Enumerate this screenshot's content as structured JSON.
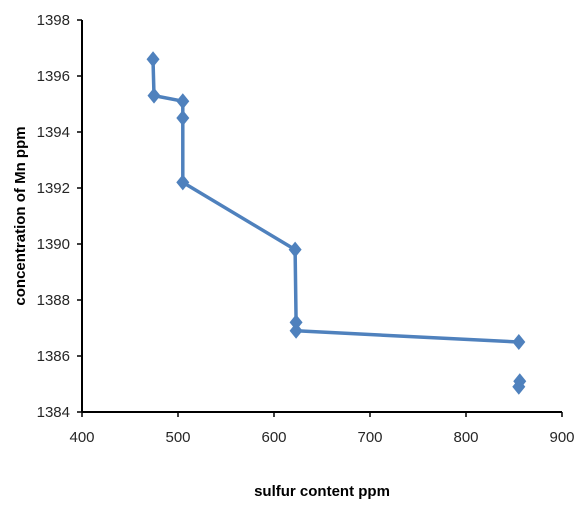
{
  "chart_data": {
    "type": "line",
    "title": "",
    "xlabel": "sulfur content ppm",
    "ylabel": "concentration of Mn ppm",
    "xlim": [
      400,
      900
    ],
    "ylim": [
      1384,
      1398
    ],
    "x_ticks": [
      400,
      500,
      600,
      700,
      800,
      900
    ],
    "y_ticks": [
      1384,
      1386,
      1388,
      1390,
      1392,
      1394,
      1396,
      1398
    ],
    "grid": false,
    "legend": "none",
    "series": [
      {
        "color": "#4f81bd",
        "marker": "diamond",
        "points": [
          {
            "x": 474,
            "y": 1396.6
          },
          {
            "x": 475,
            "y": 1395.3
          },
          {
            "x": 505,
            "y": 1395.1
          },
          {
            "x": 505,
            "y": 1394.5
          },
          {
            "x": 505,
            "y": 1392.2
          },
          {
            "x": 622,
            "y": 1389.8
          },
          {
            "x": 623,
            "y": 1387.2
          },
          {
            "x": 623,
            "y": 1386.9
          },
          {
            "x": 855,
            "y": 1386.5
          },
          {
            "x": 856,
            "y": 1385.1
          },
          {
            "x": 855,
            "y": 1384.9
          }
        ],
        "line_segments": [
          [
            0,
            8
          ]
        ]
      }
    ]
  }
}
